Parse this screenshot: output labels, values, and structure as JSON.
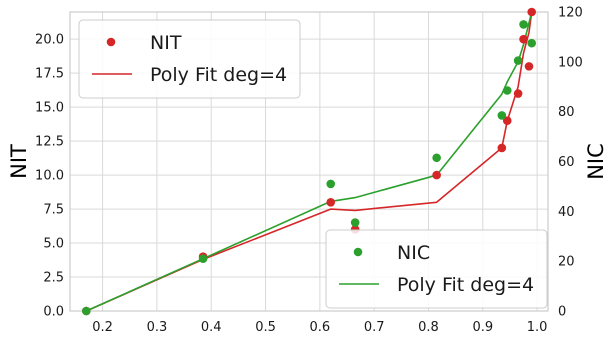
{
  "chart_data": {
    "type": "scatter",
    "grid": true,
    "x": {
      "lim": [
        0.14,
        1.02
      ],
      "ticks": [
        0.2,
        0.3,
        0.4,
        0.5,
        0.6,
        0.7,
        0.8,
        0.9,
        1.0
      ],
      "tick_labels": [
        "0.2",
        "0.3",
        "0.4",
        "0.5",
        "0.6",
        "0.7",
        "0.8",
        "0.9",
        "1.0"
      ]
    },
    "y_left": {
      "label": "NIT",
      "lim": [
        0,
        22
      ],
      "ticks": [
        0,
        2.5,
        5,
        7.5,
        10,
        12.5,
        15,
        17.5,
        20
      ],
      "tick_labels": [
        "0.0",
        "2.5",
        "5.0",
        "7.5",
        "10.0",
        "12.5",
        "15.0",
        "17.5",
        "20.0"
      ]
    },
    "y_right": {
      "label": "NIC",
      "lim": [
        0,
        120
      ],
      "ticks": [
        0,
        20,
        40,
        60,
        80,
        100,
        120
      ],
      "tick_labels": [
        "0",
        "20",
        "40",
        "60",
        "80",
        "100",
        "120"
      ]
    },
    "series": [
      {
        "name": "NIT",
        "kind": "scatter",
        "axis": "left",
        "color": "#d62728",
        "points": [
          [
            0.17,
            0
          ],
          [
            0.385,
            4
          ],
          [
            0.62,
            8
          ],
          [
            0.665,
            6
          ],
          [
            0.815,
            10
          ],
          [
            0.935,
            12
          ],
          [
            0.945,
            14
          ],
          [
            0.965,
            16
          ],
          [
            0.975,
            20
          ],
          [
            0.985,
            18
          ],
          [
            0.99,
            22
          ]
        ]
      },
      {
        "name": "Poly Fit deg=4",
        "kind": "line",
        "axis": "left",
        "color": "#d62728",
        "points": [
          [
            0.17,
            0
          ],
          [
            0.385,
            3.8
          ],
          [
            0.62,
            7.5
          ],
          [
            0.665,
            7.4
          ],
          [
            0.815,
            8
          ],
          [
            0.935,
            12
          ],
          [
            0.945,
            14
          ],
          [
            0.965,
            16.5
          ],
          [
            0.975,
            19
          ],
          [
            0.985,
            20.5
          ],
          [
            0.99,
            22
          ]
        ]
      },
      {
        "name": "NIC",
        "kind": "scatter",
        "axis": "right",
        "color": "#2ca02c",
        "points": [
          [
            0.17,
            0
          ],
          [
            0.385,
            21
          ],
          [
            0.62,
            51
          ],
          [
            0.665,
            35.5
          ],
          [
            0.815,
            61.5
          ],
          [
            0.935,
            78.5
          ],
          [
            0.945,
            88.5
          ],
          [
            0.965,
            100.5
          ],
          [
            0.975,
            115
          ],
          [
            0.99,
            107.5
          ]
        ]
      },
      {
        "name": "Poly Fit deg=4",
        "kind": "line",
        "axis": "right",
        "color": "#2ca02c",
        "points": [
          [
            0.17,
            0
          ],
          [
            0.385,
            21
          ],
          [
            0.62,
            44
          ],
          [
            0.665,
            45.5
          ],
          [
            0.815,
            54.5
          ],
          [
            0.935,
            87
          ],
          [
            0.945,
            92
          ],
          [
            0.965,
            100
          ],
          [
            0.975,
            107
          ],
          [
            0.99,
            120
          ]
        ]
      }
    ],
    "legends": [
      {
        "placement": "top-left",
        "entries": [
          {
            "label": "NIT",
            "kind": "scatter",
            "color": "#d62728"
          },
          {
            "label": "Poly Fit deg=4",
            "kind": "line",
            "color": "#d62728"
          }
        ]
      },
      {
        "placement": "bottom-right",
        "entries": [
          {
            "label": "NIC",
            "kind": "scatter",
            "color": "#2ca02c"
          },
          {
            "label": "Poly Fit deg=4",
            "kind": "line",
            "color": "#2ca02c"
          }
        ]
      }
    ]
  }
}
